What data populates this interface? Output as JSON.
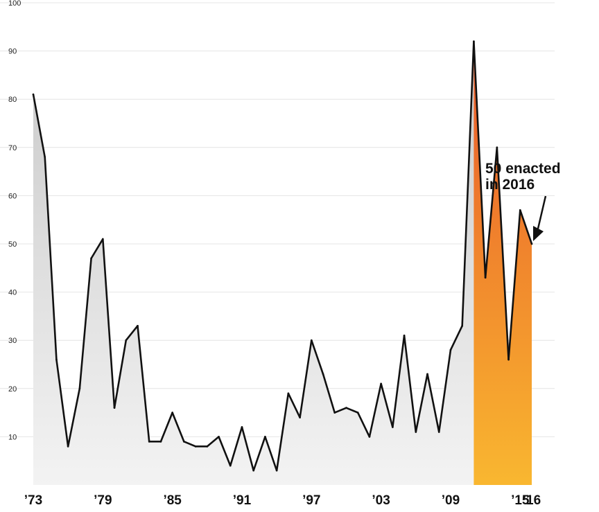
{
  "chart_data": {
    "type": "area",
    "title": "",
    "xlabel": "",
    "ylabel": "",
    "ylim": [
      0,
      100
    ],
    "xlim": [
      1973,
      2016
    ],
    "grid": true,
    "y_ticks": [
      10,
      20,
      30,
      40,
      50,
      60,
      70,
      80,
      90,
      100
    ],
    "x_tick_values": [
      1973,
      1979,
      1985,
      1991,
      1997,
      2003,
      2009,
      2015,
      2016
    ],
    "x_tick_labels": [
      "’73",
      "’79",
      "’85",
      "’91",
      "’97",
      "’03",
      "’09",
      "’15",
      "’16"
    ],
    "series": [
      {
        "x": [
          1973,
          1974,
          1975,
          1976,
          1977,
          1978,
          1979,
          1980,
          1981,
          1982,
          1983,
          1984,
          1985,
          1986,
          1987,
          1988,
          1989,
          1990,
          1991,
          1992,
          1993,
          1994,
          1995,
          1996,
          1997,
          1998,
          1999,
          2000,
          2001,
          2002,
          2003,
          2004,
          2005,
          2006,
          2007,
          2008,
          2009,
          2010,
          2011,
          2012,
          2013,
          2014,
          2015,
          2016
        ],
        "values": [
          81,
          68,
          26,
          8,
          20,
          47,
          51,
          16,
          30,
          33,
          9,
          9,
          15,
          9,
          8,
          8,
          10,
          4,
          12,
          3,
          10,
          3,
          19,
          14,
          30,
          23,
          15,
          16,
          15,
          10,
          21,
          12,
          31,
          11,
          23,
          11,
          28,
          33,
          92,
          43,
          70,
          26,
          57,
          50
        ]
      }
    ],
    "highlight_range": [
      2011,
      2016
    ],
    "annotation": {
      "lines": [
        "50 enacted",
        "in 2016"
      ],
      "target_x": 2016,
      "target_y": 50
    },
    "colors": {
      "line": "#111111",
      "area_top": "#c9c9c9",
      "area_bottom": "#f3f3f3",
      "highlight_top": "#e8572a",
      "highlight_bottom": "#f9b730",
      "grid": "#e4e4e4"
    }
  }
}
